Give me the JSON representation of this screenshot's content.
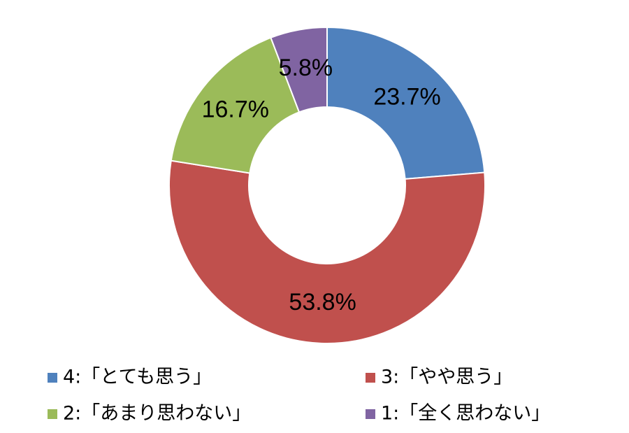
{
  "chart_data": {
    "type": "donut",
    "categories": [
      "4:「とても思う」",
      "3:「やや思う」",
      "2:「あまり思わない」",
      "1:「全く思わない」"
    ],
    "values": [
      23.7,
      53.8,
      16.7,
      5.8
    ],
    "value_labels": [
      "23.7%",
      "53.8%",
      "16.7%",
      "5.8%"
    ],
    "colors": [
      "#4f81bd",
      "#c0504d",
      "#9bbb59",
      "#8064a2"
    ],
    "legend": "bottom"
  }
}
